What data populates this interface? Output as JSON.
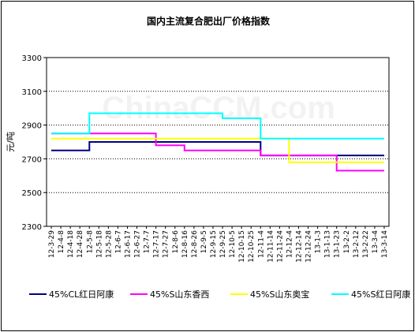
{
  "chart_data": {
    "type": "line",
    "title": "国内主流复合肥出厂价格指数",
    "ylabel": "元/吨",
    "xlabel": "",
    "ylim": [
      2300,
      3300
    ],
    "yticks": [
      2300,
      2500,
      2700,
      2900,
      3100,
      3300
    ],
    "grid": true,
    "legend_position": "bottom",
    "categories": [
      "12-3-29",
      "12-4-8",
      "12-4-18",
      "12-4-28",
      "12-5-8",
      "12-5-18",
      "12-5-28",
      "12-6-7",
      "12-6-17",
      "12-6-27",
      "12-7-7",
      "12-7-17",
      "12-7-27",
      "12-8-6",
      "12-8-16",
      "12-8-26",
      "12-9-5",
      "12-9-15",
      "12-9-25",
      "12-10-5",
      "12-10-15",
      "12-10-25",
      "12-11-4",
      "12-11-14",
      "12-11-24",
      "12-12-4",
      "12-12-14",
      "12-12-24",
      "13-1-3",
      "13-1-13",
      "13-1-23",
      "13-2-2",
      "13-2-12",
      "13-2-22",
      "13-3-4",
      "13-3-14"
    ],
    "series": [
      {
        "name": "45%CL红日阿康",
        "color": "#000080",
        "values": [
          2750,
          2750,
          2750,
          2750,
          2800,
          2800,
          2800,
          2800,
          2800,
          2800,
          2800,
          2800,
          2800,
          2800,
          2800,
          2800,
          2800,
          2800,
          2800,
          2800,
          2800,
          2800,
          2720,
          2720,
          2720,
          2720,
          2720,
          2720,
          2720,
          2720,
          2720,
          2720,
          2720,
          2720,
          2720,
          2720
        ]
      },
      {
        "name": "45%S山东香西",
        "color": "#ff00ff",
        "values": [
          2850,
          2850,
          2850,
          2850,
          2850,
          2850,
          2850,
          2850,
          2850,
          2850,
          2850,
          2780,
          2780,
          2780,
          2750,
          2750,
          2750,
          2750,
          2750,
          2750,
          2750,
          2750,
          2720,
          2720,
          2720,
          2720,
          2720,
          2720,
          2720,
          2720,
          2630,
          2630,
          2630,
          2630,
          2630,
          2630
        ]
      },
      {
        "name": "45%S山东奥宝",
        "color": "#ffff00",
        "values": [
          2820,
          2820,
          2820,
          2820,
          2820,
          2820,
          2820,
          2820,
          2820,
          2820,
          2820,
          2820,
          2820,
          2820,
          2820,
          2820,
          2820,
          2820,
          2820,
          2820,
          2820,
          2820,
          2820,
          2820,
          2820,
          2680,
          2680,
          2680,
          2680,
          2680,
          2680,
          2680,
          2680,
          2680,
          2680,
          2680
        ]
      },
      {
        "name": "45%S红日阿康",
        "color": "#00ffff",
        "values": [
          2850,
          2850,
          2850,
          2850,
          2970,
          2970,
          2970,
          2970,
          2970,
          2970,
          2970,
          2970,
          2970,
          2970,
          2970,
          2970,
          2970,
          2970,
          2940,
          2940,
          2940,
          2940,
          2820,
          2820,
          2820,
          2820,
          2820,
          2820,
          2820,
          2820,
          2820,
          2820,
          2820,
          2820,
          2820,
          2820
        ]
      }
    ]
  },
  "watermark": "ChinaCCM.com"
}
